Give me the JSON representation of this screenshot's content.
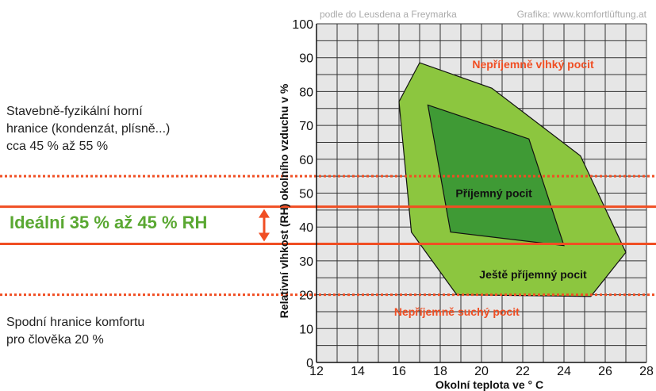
{
  "chart_data": {
    "type": "area",
    "xlabel": "Okolní teplota ve ° C",
    "ylabel": "Relativní vlhkost (RH) okolního vzduchu v %",
    "xlim": [
      12,
      28
    ],
    "ylim": [
      0,
      100
    ],
    "xticks": [
      "12",
      "14",
      "16",
      "18",
      "20",
      "22",
      "24",
      "26",
      "28"
    ],
    "yticks": [
      "0",
      "10",
      "20",
      "30",
      "40",
      "50",
      "60",
      "70",
      "80",
      "90",
      "100"
    ],
    "grid": true,
    "source": "podle do Leusdena a Freymarka",
    "credit": "Grafika: www.komfortlüftung.at",
    "regions": [
      {
        "name": "Ještě příjemný pocit",
        "color": "#8cc63f",
        "points": [
          [
            16,
            77
          ],
          [
            17,
            88.5
          ],
          [
            20.5,
            81
          ],
          [
            24.8,
            61
          ],
          [
            27,
            32.5
          ],
          [
            25.3,
            19.5
          ],
          [
            18.8,
            20
          ],
          [
            16.6,
            38.5
          ]
        ]
      },
      {
        "name": "Příjemný pocit",
        "color": "#3f9a35",
        "points": [
          [
            17.4,
            76
          ],
          [
            22.3,
            66
          ],
          [
            24,
            34.5
          ],
          [
            18.5,
            38.5
          ]
        ]
      }
    ],
    "region_labels": [
      {
        "text": "Nepříjemně vlhký pocit",
        "x": 22.5,
        "y": 88,
        "color": "#f04e23"
      },
      {
        "text": "Příjemný pocit",
        "x": 20.6,
        "y": 50,
        "color": "#111111"
      },
      {
        "text": "Ještě příjemný pocit",
        "x": 22.5,
        "y": 26,
        "color": "#111111"
      },
      {
        "text": "Nepříjemně suchý pocit",
        "x": 18.8,
        "y": 15,
        "color": "#f04e23"
      }
    ],
    "reference_lines": [
      {
        "y": 55,
        "style": "dotted",
        "color": "#f04e23"
      },
      {
        "y": 46,
        "style": "solid",
        "color": "#f04e23"
      },
      {
        "y": 35,
        "style": "solid",
        "color": "#f04e23"
      },
      {
        "y": 20,
        "style": "dotted",
        "color": "#f04e23"
      }
    ]
  },
  "annotations": {
    "upper_limit": [
      "Stavebně-fyzikální horní",
      "hranice (kondenzát, plísně...)",
      "cca 45 % až 55 %"
    ],
    "ideal": "Ideální 35 % až 45 % RH",
    "lower_limit": [
      "Spodní hranice komfortu",
      "pro člověka 20 %"
    ]
  },
  "colors": {
    "accent_red": "#f04e23",
    "ideal_green": "#5aa832",
    "outer_region": "#8cc63f",
    "inner_region": "#3f9a35",
    "plot_bg": "#e6e6e6",
    "grid": "#333333"
  }
}
